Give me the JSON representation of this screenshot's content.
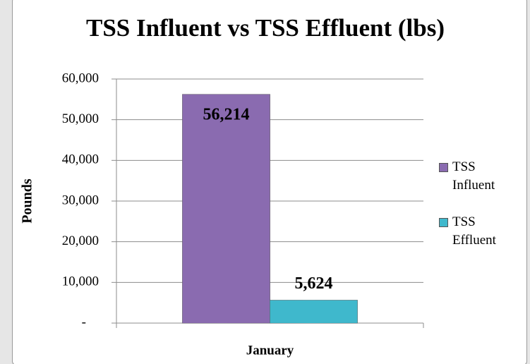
{
  "chart_data": {
    "type": "bar",
    "title": "TSS Influent vs TSS Effluent (lbs)",
    "y_label": "Pounds",
    "categories": [
      "January"
    ],
    "series": [
      {
        "name": "TSS Influent",
        "color": "#8a6bb0",
        "values": [
          56214
        ],
        "value_labels": [
          "56,214"
        ]
      },
      {
        "name": "TSS Effluent",
        "color": "#3fb8cc",
        "values": [
          5624
        ],
        "value_labels": [
          "5,624"
        ]
      }
    ],
    "ylim": [
      0,
      60000
    ],
    "yticks": [
      {
        "value": 0,
        "label": "-"
      },
      {
        "value": 10000,
        "label": "10,000"
      },
      {
        "value": 20000,
        "label": "20,000"
      },
      {
        "value": 30000,
        "label": "30,000"
      },
      {
        "value": 40000,
        "label": "40,000"
      },
      {
        "value": 50000,
        "label": "50,000"
      },
      {
        "value": 60000,
        "label": "60,000"
      }
    ],
    "grid": true,
    "legend": "right"
  }
}
